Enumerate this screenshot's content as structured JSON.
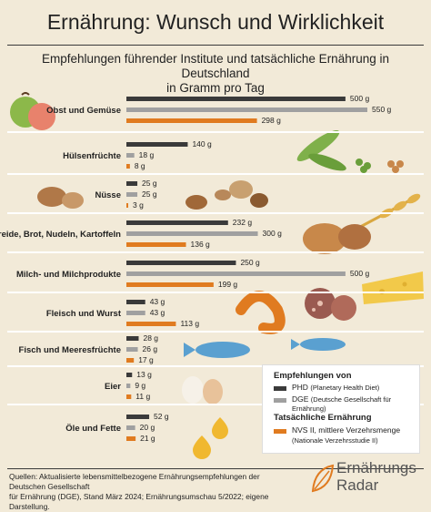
{
  "title": "Ernährung: Wunsch und Wirklichkeit",
  "subtitle_line1": "Empfehlungen führender Institute und tatsächliche Ernährung in Deutschland",
  "subtitle_line2": "in Gramm pro Tag",
  "colors": {
    "background": "#f2ead8",
    "phd": "#3a3a3a",
    "dge": "#a0a0a0",
    "nvs": "#e07b20"
  },
  "chart_data": {
    "type": "bar",
    "orientation": "horizontal",
    "unit": "g",
    "categories": [
      "Obst und Gemüse",
      "Hülsenfrüchte",
      "Nüsse",
      "Getreide, Brot, Nudeln, Kartoffeln",
      "Milch- und Milchprodukte",
      "Fleisch und Wurst",
      "Fisch und Meeresfrüchte",
      "Eier",
      "Öle und Fette"
    ],
    "series": [
      {
        "name": "PHD",
        "values": [
          500,
          140,
          25,
          232,
          250,
          43,
          28,
          13,
          52
        ]
      },
      {
        "name": "DGE",
        "values": [
          550,
          18,
          25,
          300,
          500,
          43,
          26,
          9,
          20
        ]
      },
      {
        "name": "NVS II, mittlere Verzehrsmenge",
        "values": [
          298,
          8,
          3,
          136,
          199,
          113,
          17,
          11,
          21
        ]
      }
    ],
    "value_labels": [
      [
        "500 g",
        "140 g",
        "25 g",
        "232 g",
        "250 g",
        "43 g",
        "28 g",
        "13 g",
        "52 g"
      ],
      [
        "550 g",
        "18 g",
        "25 g",
        "300 g",
        "500 g",
        "43 g",
        "26 g",
        "9 g",
        "20 g"
      ],
      [
        "298 g",
        "8 g",
        "3 g",
        "136 g",
        "199 g",
        "113 g",
        "17 g",
        "11 g",
        "21 g"
      ]
    ],
    "xlim": [
      0,
      550
    ]
  },
  "legend": {
    "heading1": "Empfehlungen von",
    "phd_label": "PHD",
    "phd_sub": "(Planetary Health Diet)",
    "dge_label": "DGE",
    "dge_sub": "(Deutsche Gesellschaft für Ernährung)",
    "heading2": "Tatsächliche Ernährung",
    "nvs_label": "NVS II, mittlere Verzehrsmenge",
    "nvs_sub": "(Nationale Verzehrsstudie II)"
  },
  "sources_line1": "Quellen: Aktualisierte lebensmittelbezogene Ernährungsempfehlungen der Deutschen Gesellschaft",
  "sources_line2": "für Ernährung (DGE), Stand März 2024; Ernährungsumschau 5/2022; eigene Darstellung.",
  "brand_line1": "Ernährungs",
  "brand_line2": "Radar"
}
